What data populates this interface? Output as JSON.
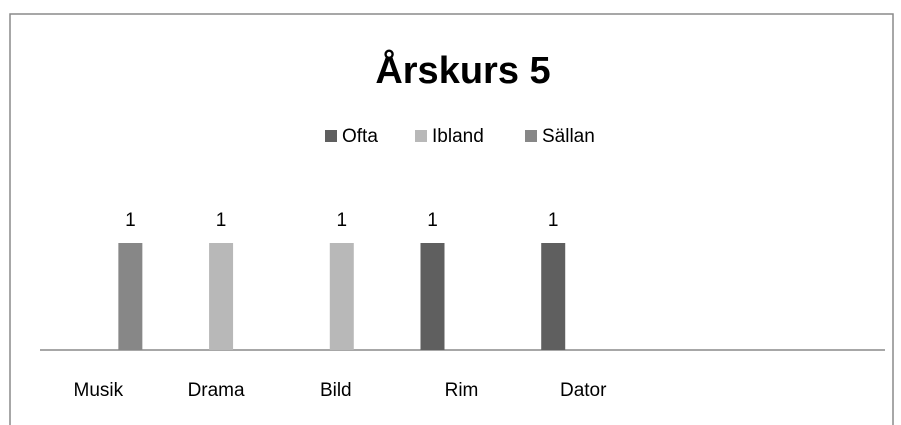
{
  "chart_data": {
    "type": "bar",
    "title": "Årskurs 5",
    "categories": [
      "Musik",
      "Drama",
      "Bild",
      "Rim",
      "Dator",
      null,
      null
    ],
    "series": [
      {
        "name": "Ofta",
        "color": "#5f5f5f",
        "values": [
          null,
          null,
          null,
          1,
          1,
          null,
          null
        ]
      },
      {
        "name": "Ibland",
        "color": "#b8b8b8",
        "values": [
          null,
          1,
          1,
          null,
          null,
          null,
          null
        ]
      },
      {
        "name": "Sällan",
        "color": "#878787",
        "values": [
          1,
          null,
          null,
          null,
          null,
          null,
          null
        ]
      }
    ],
    "legend": "top"
  }
}
